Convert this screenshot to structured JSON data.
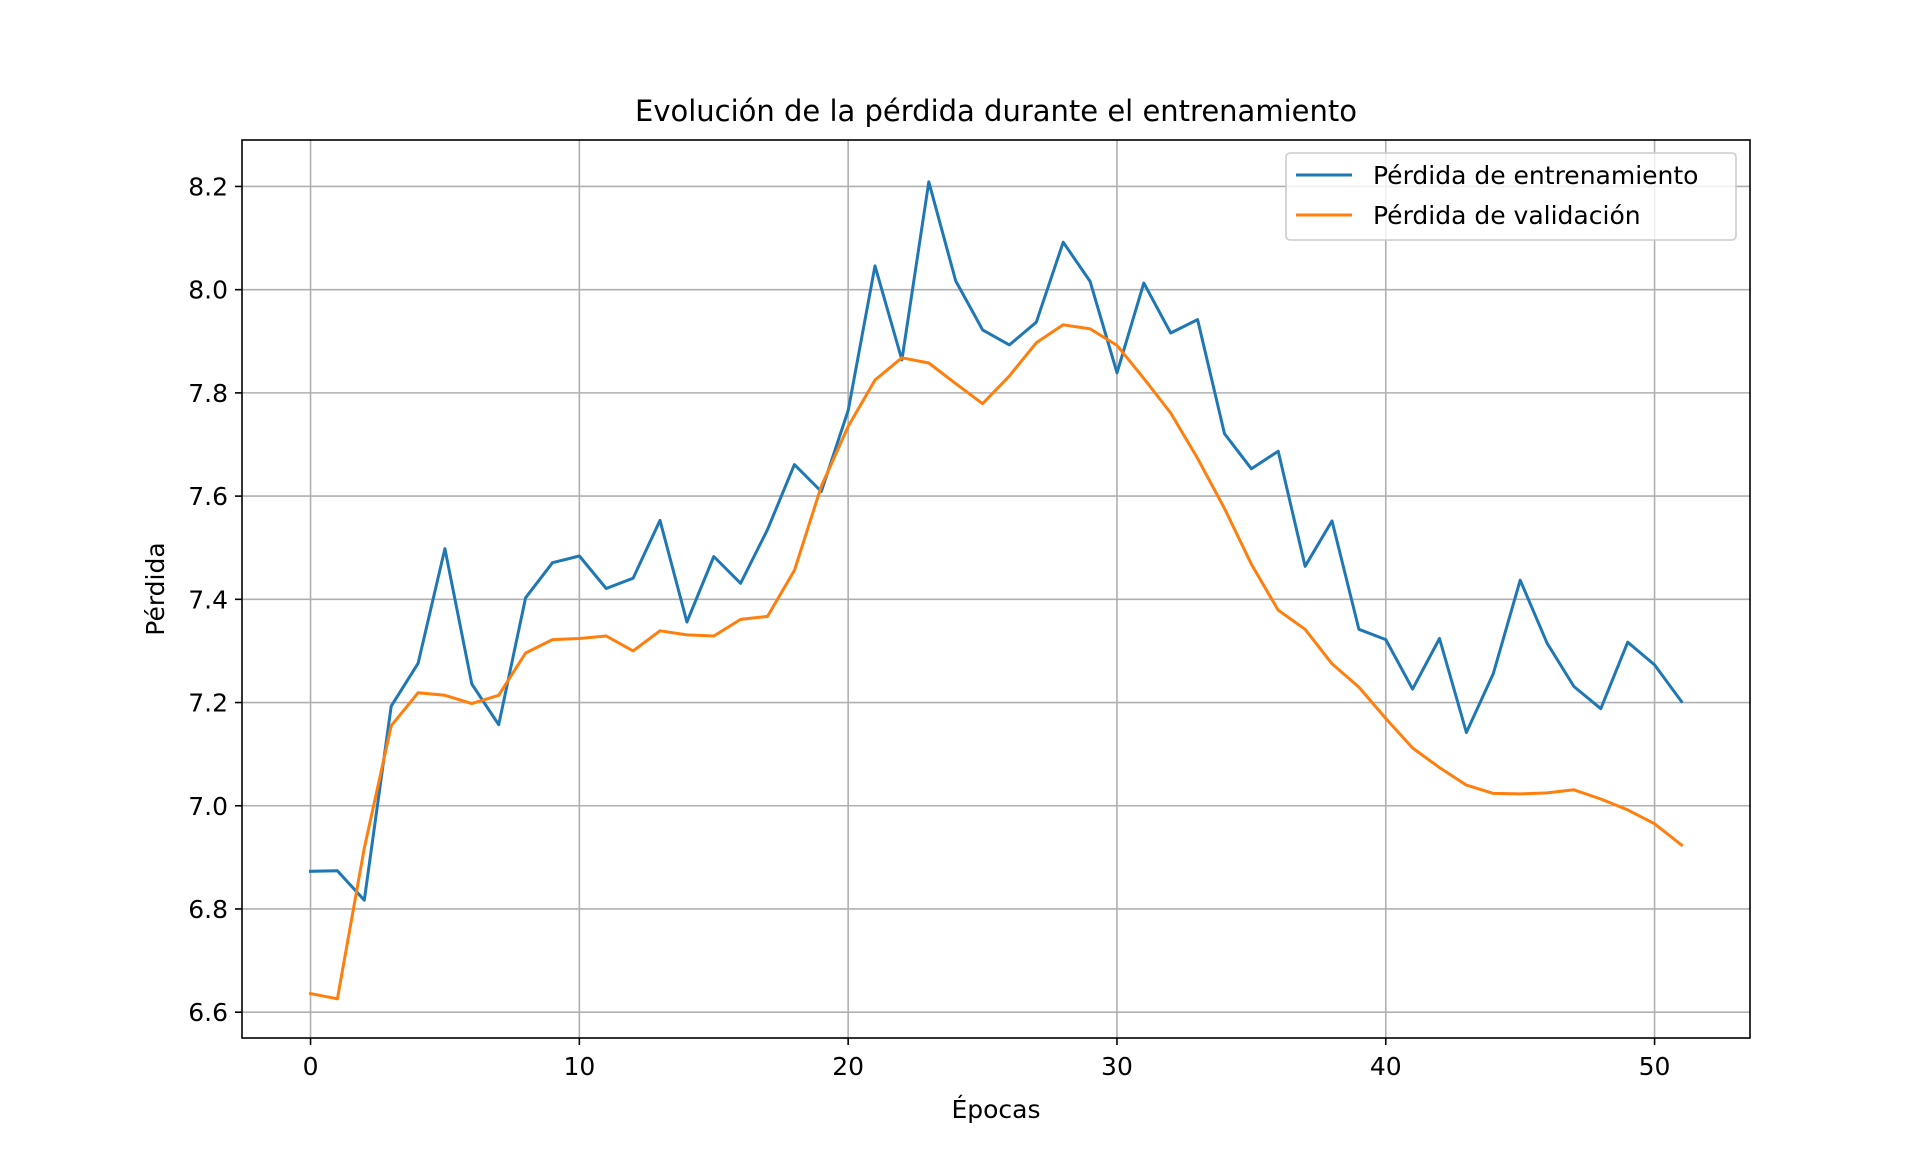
{
  "chart_data": {
    "type": "line",
    "title": "Evolución de la pérdida durante el entrenamiento",
    "xlabel": "Épocas",
    "ylabel": "Pérdida",
    "xlim": [
      -2.55,
      53.55
    ],
    "ylim": [
      6.55,
      8.29
    ],
    "xticks": [
      0,
      10,
      20,
      30,
      40,
      50
    ],
    "yticks": [
      6.6,
      6.8,
      7.0,
      7.2,
      7.4,
      7.6,
      7.8,
      8.0,
      8.2
    ],
    "ytick_labels": [
      "6.6",
      "6.8",
      "7.0",
      "7.2",
      "7.4",
      "7.6",
      "7.8",
      "8.0",
      "8.2"
    ],
    "grid": true,
    "legend_position": "top-right",
    "x": [
      0,
      1,
      2,
      3,
      4,
      5,
      6,
      7,
      8,
      9,
      10,
      11,
      12,
      13,
      14,
      15,
      16,
      17,
      18,
      19,
      20,
      21,
      22,
      23,
      24,
      25,
      26,
      27,
      28,
      29,
      30,
      31,
      32,
      33,
      34,
      35,
      36,
      37,
      38,
      39,
      40,
      41,
      42,
      43,
      44,
      45,
      46,
      47,
      48,
      49,
      50,
      51
    ],
    "series": [
      {
        "name": "Pérdida de entrenamiento",
        "color": "#1f77b4",
        "values": [
          6.873,
          6.874,
          6.817,
          7.193,
          7.276,
          7.498,
          7.236,
          7.157,
          7.403,
          7.471,
          7.484,
          7.421,
          7.441,
          7.553,
          7.356,
          7.483,
          7.431,
          7.535,
          7.661,
          7.609,
          7.766,
          8.046,
          7.864,
          8.209,
          8.017,
          7.922,
          7.893,
          7.937,
          8.092,
          8.016,
          7.839,
          8.013,
          7.916,
          7.942,
          7.721,
          7.653,
          7.687,
          7.464,
          7.552,
          7.342,
          7.322,
          7.226,
          7.324,
          7.142,
          7.256,
          7.437,
          7.315,
          7.231,
          7.188,
          7.317,
          7.273,
          7.202
        ]
      },
      {
        "name": "Pérdida de validación",
        "color": "#ff7f0e",
        "values": [
          6.636,
          6.626,
          6.918,
          7.155,
          7.219,
          7.214,
          7.198,
          7.214,
          7.296,
          7.322,
          7.324,
          7.329,
          7.3,
          7.339,
          7.331,
          7.329,
          7.361,
          7.367,
          7.456,
          7.619,
          7.735,
          7.825,
          7.868,
          7.858,
          7.818,
          7.779,
          7.833,
          7.897,
          7.932,
          7.924,
          7.892,
          7.828,
          7.761,
          7.673,
          7.576,
          7.468,
          7.379,
          7.342,
          7.275,
          7.23,
          7.169,
          7.112,
          7.074,
          7.04,
          7.024,
          7.023,
          7.025,
          7.031,
          7.013,
          6.992,
          6.965,
          6.924
        ]
      }
    ]
  }
}
